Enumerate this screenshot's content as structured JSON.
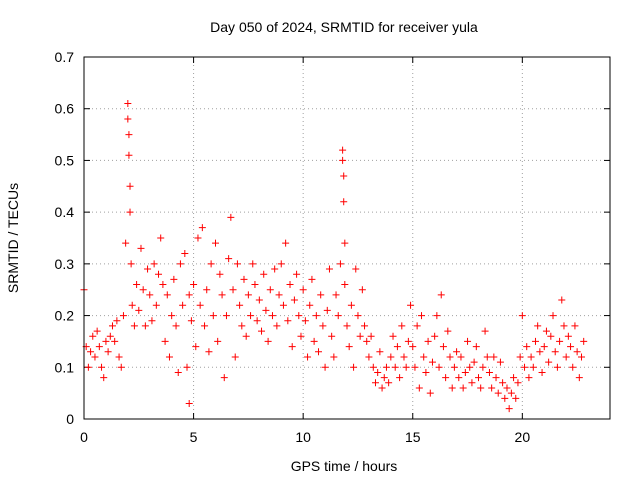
{
  "chart_data": {
    "type": "scatter",
    "title": "Day 050 of 2024, SRMTID for receiver yula",
    "xlabel": "GPS time / hours",
    "ylabel": "SRMTID / TECUs",
    "xlim": [
      0,
      24
    ],
    "ylim": [
      0,
      0.7
    ],
    "xticks": [
      0,
      5,
      10,
      15,
      20
    ],
    "xtick_labels": [
      "0",
      "5",
      "10",
      "15",
      "20"
    ],
    "yticks": [
      0,
      0.1,
      0.2,
      0.3,
      0.4,
      0.5,
      0.6,
      0.7
    ],
    "ytick_labels": [
      "0",
      "0.1",
      "0.2",
      "0.3",
      "0.4",
      "0.5",
      "0.6",
      "0.7"
    ],
    "grid": true,
    "marker": "plus",
    "color": "#ff0000",
    "series": [
      {
        "name": "SRMTID",
        "x": [
          0.0,
          0.1,
          0.2,
          0.3,
          0.4,
          0.5,
          0.6,
          0.7,
          0.8,
          0.9,
          1.0,
          1.1,
          1.2,
          1.3,
          1.4,
          1.5,
          1.6,
          1.7,
          1.8,
          1.9,
          2.0,
          2.0,
          2.05,
          2.05,
          2.1,
          2.1,
          2.15,
          2.2,
          2.3,
          2.4,
          2.5,
          2.6,
          2.7,
          2.8,
          2.9,
          3.0,
          3.1,
          3.2,
          3.3,
          3.4,
          3.5,
          3.6,
          3.7,
          3.8,
          3.9,
          4.0,
          4.1,
          4.2,
          4.3,
          4.4,
          4.5,
          4.6,
          4.7,
          4.8,
          4.8,
          4.9,
          5.0,
          5.1,
          5.2,
          5.3,
          5.4,
          5.5,
          5.6,
          5.7,
          5.8,
          5.9,
          6.0,
          6.1,
          6.2,
          6.3,
          6.4,
          6.5,
          6.6,
          6.7,
          6.8,
          6.9,
          7.0,
          7.1,
          7.2,
          7.3,
          7.4,
          7.5,
          7.6,
          7.7,
          7.8,
          7.9,
          8.0,
          8.1,
          8.2,
          8.3,
          8.4,
          8.5,
          8.6,
          8.7,
          8.8,
          8.9,
          9.0,
          9.1,
          9.2,
          9.3,
          9.4,
          9.5,
          9.6,
          9.7,
          9.8,
          9.9,
          10.0,
          10.1,
          10.2,
          10.3,
          10.4,
          10.5,
          10.6,
          10.7,
          10.8,
          10.9,
          11.0,
          11.1,
          11.2,
          11.3,
          11.4,
          11.5,
          11.6,
          11.7,
          11.8,
          11.8,
          11.85,
          11.85,
          11.9,
          11.9,
          12.0,
          12.1,
          12.2,
          12.3,
          12.4,
          12.5,
          12.6,
          12.7,
          12.8,
          12.9,
          13.0,
          13.1,
          13.2,
          13.3,
          13.4,
          13.5,
          13.6,
          13.7,
          13.8,
          13.9,
          14.0,
          14.1,
          14.2,
          14.3,
          14.4,
          14.5,
          14.6,
          14.7,
          14.8,
          14.9,
          15.0,
          15.1,
          15.2,
          15.3,
          15.4,
          15.5,
          15.6,
          15.7,
          15.8,
          15.9,
          16.0,
          16.1,
          16.2,
          16.3,
          16.4,
          16.5,
          16.6,
          16.7,
          16.8,
          16.9,
          17.0,
          17.1,
          17.2,
          17.3,
          17.4,
          17.5,
          17.6,
          17.7,
          17.8,
          17.9,
          18.0,
          18.1,
          18.2,
          18.3,
          18.4,
          18.5,
          18.6,
          18.7,
          18.8,
          18.9,
          19.0,
          19.1,
          19.2,
          19.3,
          19.4,
          19.5,
          19.6,
          19.7,
          19.8,
          19.9,
          20.0,
          20.1,
          20.2,
          20.3,
          20.4,
          20.5,
          20.6,
          20.7,
          20.8,
          20.9,
          21.0,
          21.1,
          21.2,
          21.3,
          21.4,
          21.5,
          21.6,
          21.7,
          21.8,
          21.9,
          22.0,
          22.1,
          22.2,
          22.3,
          22.4,
          22.5,
          22.6,
          22.7,
          22.8
        ],
        "y": [
          0.25,
          0.14,
          0.1,
          0.13,
          0.16,
          0.12,
          0.17,
          0.14,
          0.1,
          0.08,
          0.15,
          0.13,
          0.16,
          0.18,
          0.15,
          0.19,
          0.12,
          0.1,
          0.2,
          0.34,
          0.61,
          0.58,
          0.55,
          0.51,
          0.45,
          0.4,
          0.3,
          0.22,
          0.18,
          0.26,
          0.21,
          0.33,
          0.25,
          0.18,
          0.29,
          0.24,
          0.19,
          0.3,
          0.22,
          0.28,
          0.35,
          0.26,
          0.15,
          0.24,
          0.12,
          0.2,
          0.27,
          0.18,
          0.09,
          0.3,
          0.22,
          0.32,
          0.1,
          0.03,
          0.24,
          0.19,
          0.26,
          0.14,
          0.35,
          0.22,
          0.37,
          0.18,
          0.25,
          0.13,
          0.3,
          0.2,
          0.34,
          0.15,
          0.28,
          0.24,
          0.08,
          0.2,
          0.31,
          0.39,
          0.25,
          0.12,
          0.3,
          0.22,
          0.18,
          0.27,
          0.16,
          0.24,
          0.2,
          0.3,
          0.26,
          0.19,
          0.23,
          0.17,
          0.28,
          0.21,
          0.15,
          0.25,
          0.2,
          0.29,
          0.18,
          0.24,
          0.3,
          0.22,
          0.34,
          0.19,
          0.26,
          0.14,
          0.23,
          0.28,
          0.2,
          0.16,
          0.25,
          0.19,
          0.12,
          0.22,
          0.27,
          0.15,
          0.2,
          0.13,
          0.24,
          0.18,
          0.1,
          0.21,
          0.29,
          0.16,
          0.12,
          0.24,
          0.2,
          0.3,
          0.52,
          0.5,
          0.47,
          0.42,
          0.34,
          0.26,
          0.18,
          0.14,
          0.22,
          0.1,
          0.29,
          0.2,
          0.16,
          0.25,
          0.18,
          0.15,
          0.12,
          0.16,
          0.1,
          0.07,
          0.09,
          0.13,
          0.06,
          0.08,
          0.1,
          0.07,
          0.12,
          0.16,
          0.1,
          0.14,
          0.08,
          0.18,
          0.12,
          0.1,
          0.15,
          0.22,
          0.14,
          0.1,
          0.18,
          0.06,
          0.2,
          0.12,
          0.09,
          0.15,
          0.05,
          0.11,
          0.16,
          0.2,
          0.1,
          0.24,
          0.14,
          0.08,
          0.17,
          0.12,
          0.06,
          0.1,
          0.13,
          0.08,
          0.12,
          0.06,
          0.09,
          0.15,
          0.1,
          0.07,
          0.11,
          0.14,
          0.08,
          0.06,
          0.1,
          0.17,
          0.12,
          0.09,
          0.06,
          0.12,
          0.08,
          0.05,
          0.11,
          0.07,
          0.04,
          0.06,
          0.02,
          0.05,
          0.08,
          0.04,
          0.07,
          0.12,
          0.2,
          0.1,
          0.14,
          0.08,
          0.12,
          0.1,
          0.15,
          0.18,
          0.13,
          0.09,
          0.14,
          0.17,
          0.11,
          0.16,
          0.2,
          0.13,
          0.1,
          0.15,
          0.23,
          0.18,
          0.12,
          0.16,
          0.14,
          0.1,
          0.18,
          0.13,
          0.08,
          0.12,
          0.15
        ]
      }
    ]
  }
}
